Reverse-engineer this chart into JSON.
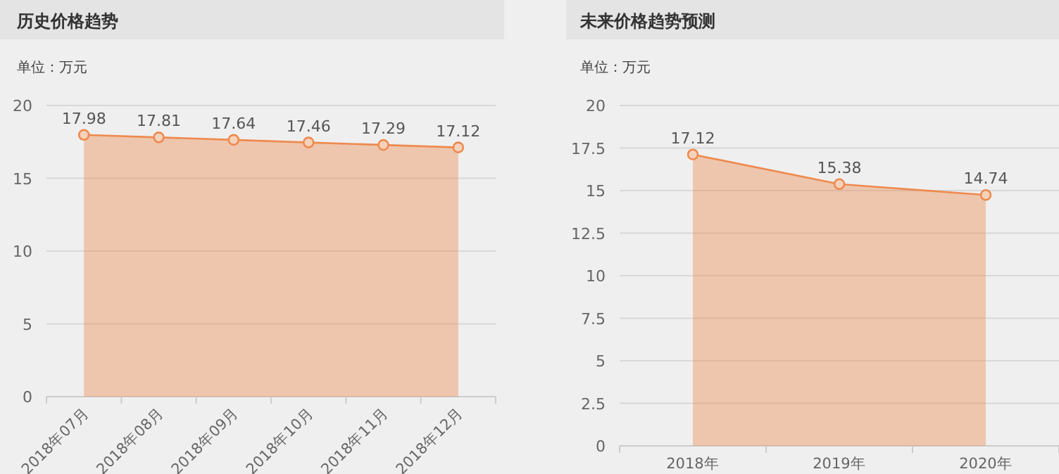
{
  "chart_data": [
    {
      "type": "area",
      "title": "历史价格趋势",
      "ylabel": "单位：万元",
      "categories": [
        "2018年07月",
        "2018年08月",
        "2018年09月",
        "2018年10月",
        "2018年11月",
        "2018年12月"
      ],
      "series": [
        {
          "color": "#ee8a4e",
          "values": [
            17.98,
            17.81,
            17.64,
            17.46,
            17.29,
            17.12
          ]
        }
      ],
      "ylim": [
        0,
        20
      ],
      "yticks": [
        0,
        5,
        10,
        15,
        20
      ],
      "grid": "y",
      "marker": "circle",
      "data_labels": true
    },
    {
      "type": "area",
      "title": "未来价格趋势预测",
      "ylabel": "单位：万元",
      "categories": [
        "2018年",
        "2019年",
        "2020年"
      ],
      "series": [
        {
          "color": "#ee8a4e",
          "values": [
            17.12,
            15.38,
            14.74
          ]
        }
      ],
      "ylim": [
        0,
        20
      ],
      "yticks": [
        0,
        2.5,
        5,
        7.5,
        10,
        12.5,
        15,
        17.5,
        20
      ],
      "grid": "y",
      "marker": "circle",
      "data_labels": true
    }
  ]
}
